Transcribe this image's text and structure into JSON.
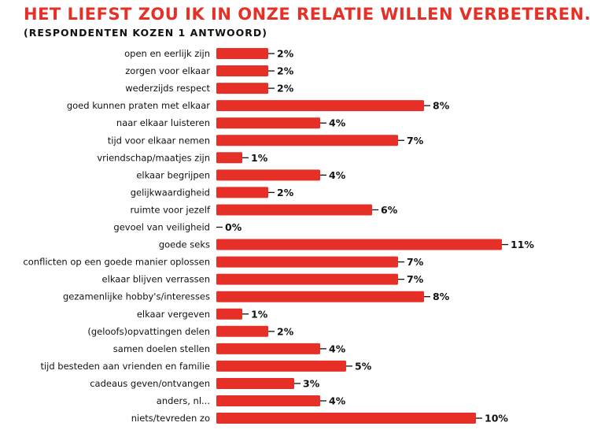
{
  "title": "HET LIEFST ZOU IK IN ONZE RELATIE WILLEN VERBETEREN...",
  "subtitle": "(RESPONDENTEN KOZEN 1 ANTWOORD)",
  "colors": {
    "bar": "#e63027",
    "title": "#e63027",
    "text": "#111111"
  },
  "chart_data": {
    "type": "bar",
    "orientation": "horizontal",
    "categories": [
      "open en eerlijk zijn",
      "zorgen voor elkaar",
      "wederzijds respect",
      "goed kunnen praten met elkaar",
      "naar elkaar luisteren",
      "tijd voor elkaar nemen",
      "vriendschap/maatjes zijn",
      "elkaar begrijpen",
      "gelijkwaardigheid",
      "ruimte voor jezelf",
      "gevoel van veiligheid",
      "goede seks",
      "conflicten op een goede manier oplossen",
      "elkaar blijven verrassen",
      "gezamenlijke hobby's/interesses",
      "elkaar vergeven",
      "(geloofs)opvattingen delen",
      "samen doelen stellen",
      "tijd besteden aan vrienden en familie",
      "cadeaus geven/ontvangen",
      "anders, nl...",
      "niets/tevreden zo"
    ],
    "values": [
      2,
      2,
      2,
      8,
      4,
      7,
      1,
      4,
      2,
      6,
      0,
      11,
      7,
      7,
      8,
      1,
      2,
      4,
      5,
      3,
      4,
      10
    ],
    "value_labels": [
      "2%",
      "2%",
      "2%",
      "8%",
      "4%",
      "7%",
      "1%",
      "4%",
      "2%",
      "6%",
      "0%",
      "11%",
      "7%",
      "7%",
      "8%",
      "1%",
      "2%",
      "4%",
      "5%",
      "3%",
      "4%",
      "10%"
    ],
    "unit": "%",
    "xlabel": "",
    "ylabel": "",
    "grid": false,
    "legend": "none"
  }
}
